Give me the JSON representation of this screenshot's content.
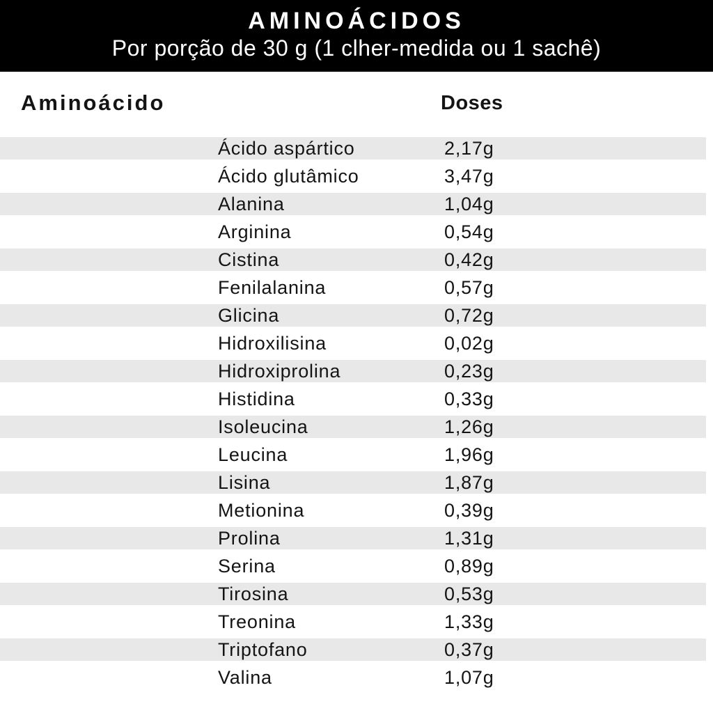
{
  "header": {
    "title": "AMINOÁCIDOS",
    "subtitle": "Por porção de 30 g (1 clher-medida ou 1 sachê)"
  },
  "table": {
    "col_amino": "Aminoácido",
    "col_doses": "Doses",
    "rows": [
      {
        "name": "Ácido aspártico",
        "dose": "2,17g"
      },
      {
        "name": "Ácido glutâmico",
        "dose": "3,47g"
      },
      {
        "name": "Alanina",
        "dose": "1,04g"
      },
      {
        "name": "Arginina",
        "dose": "0,54g"
      },
      {
        "name": "Cistina",
        "dose": "0,42g"
      },
      {
        "name": "Fenilalanina",
        "dose": "0,57g"
      },
      {
        "name": "Glicina",
        "dose": "0,72g"
      },
      {
        "name": "Hidroxilisina",
        "dose": "0,02g"
      },
      {
        "name": "Hidroxiprolina",
        "dose": "0,23g"
      },
      {
        "name": "Histidina",
        "dose": "0,33g"
      },
      {
        "name": "Isoleucina",
        "dose": "1,26g"
      },
      {
        "name": "Leucina",
        "dose": "1,96g"
      },
      {
        "name": "Lisina",
        "dose": "1,87g"
      },
      {
        "name": "Metionina",
        "dose": "0,39g"
      },
      {
        "name": "Prolina",
        "dose": "1,31g"
      },
      {
        "name": "Serina",
        "dose": "0,89g"
      },
      {
        "name": "Tirosina",
        "dose": "0,53g"
      },
      {
        "name": "Treonina",
        "dose": "1,33g"
      },
      {
        "name": "Triptofano",
        "dose": "0,37g"
      },
      {
        "name": "Valina",
        "dose": "1,07g"
      }
    ]
  },
  "colors": {
    "header_bg": "#000000",
    "header_text": "#ffffff",
    "stripe": "#e8e8e8",
    "text": "#141414"
  }
}
